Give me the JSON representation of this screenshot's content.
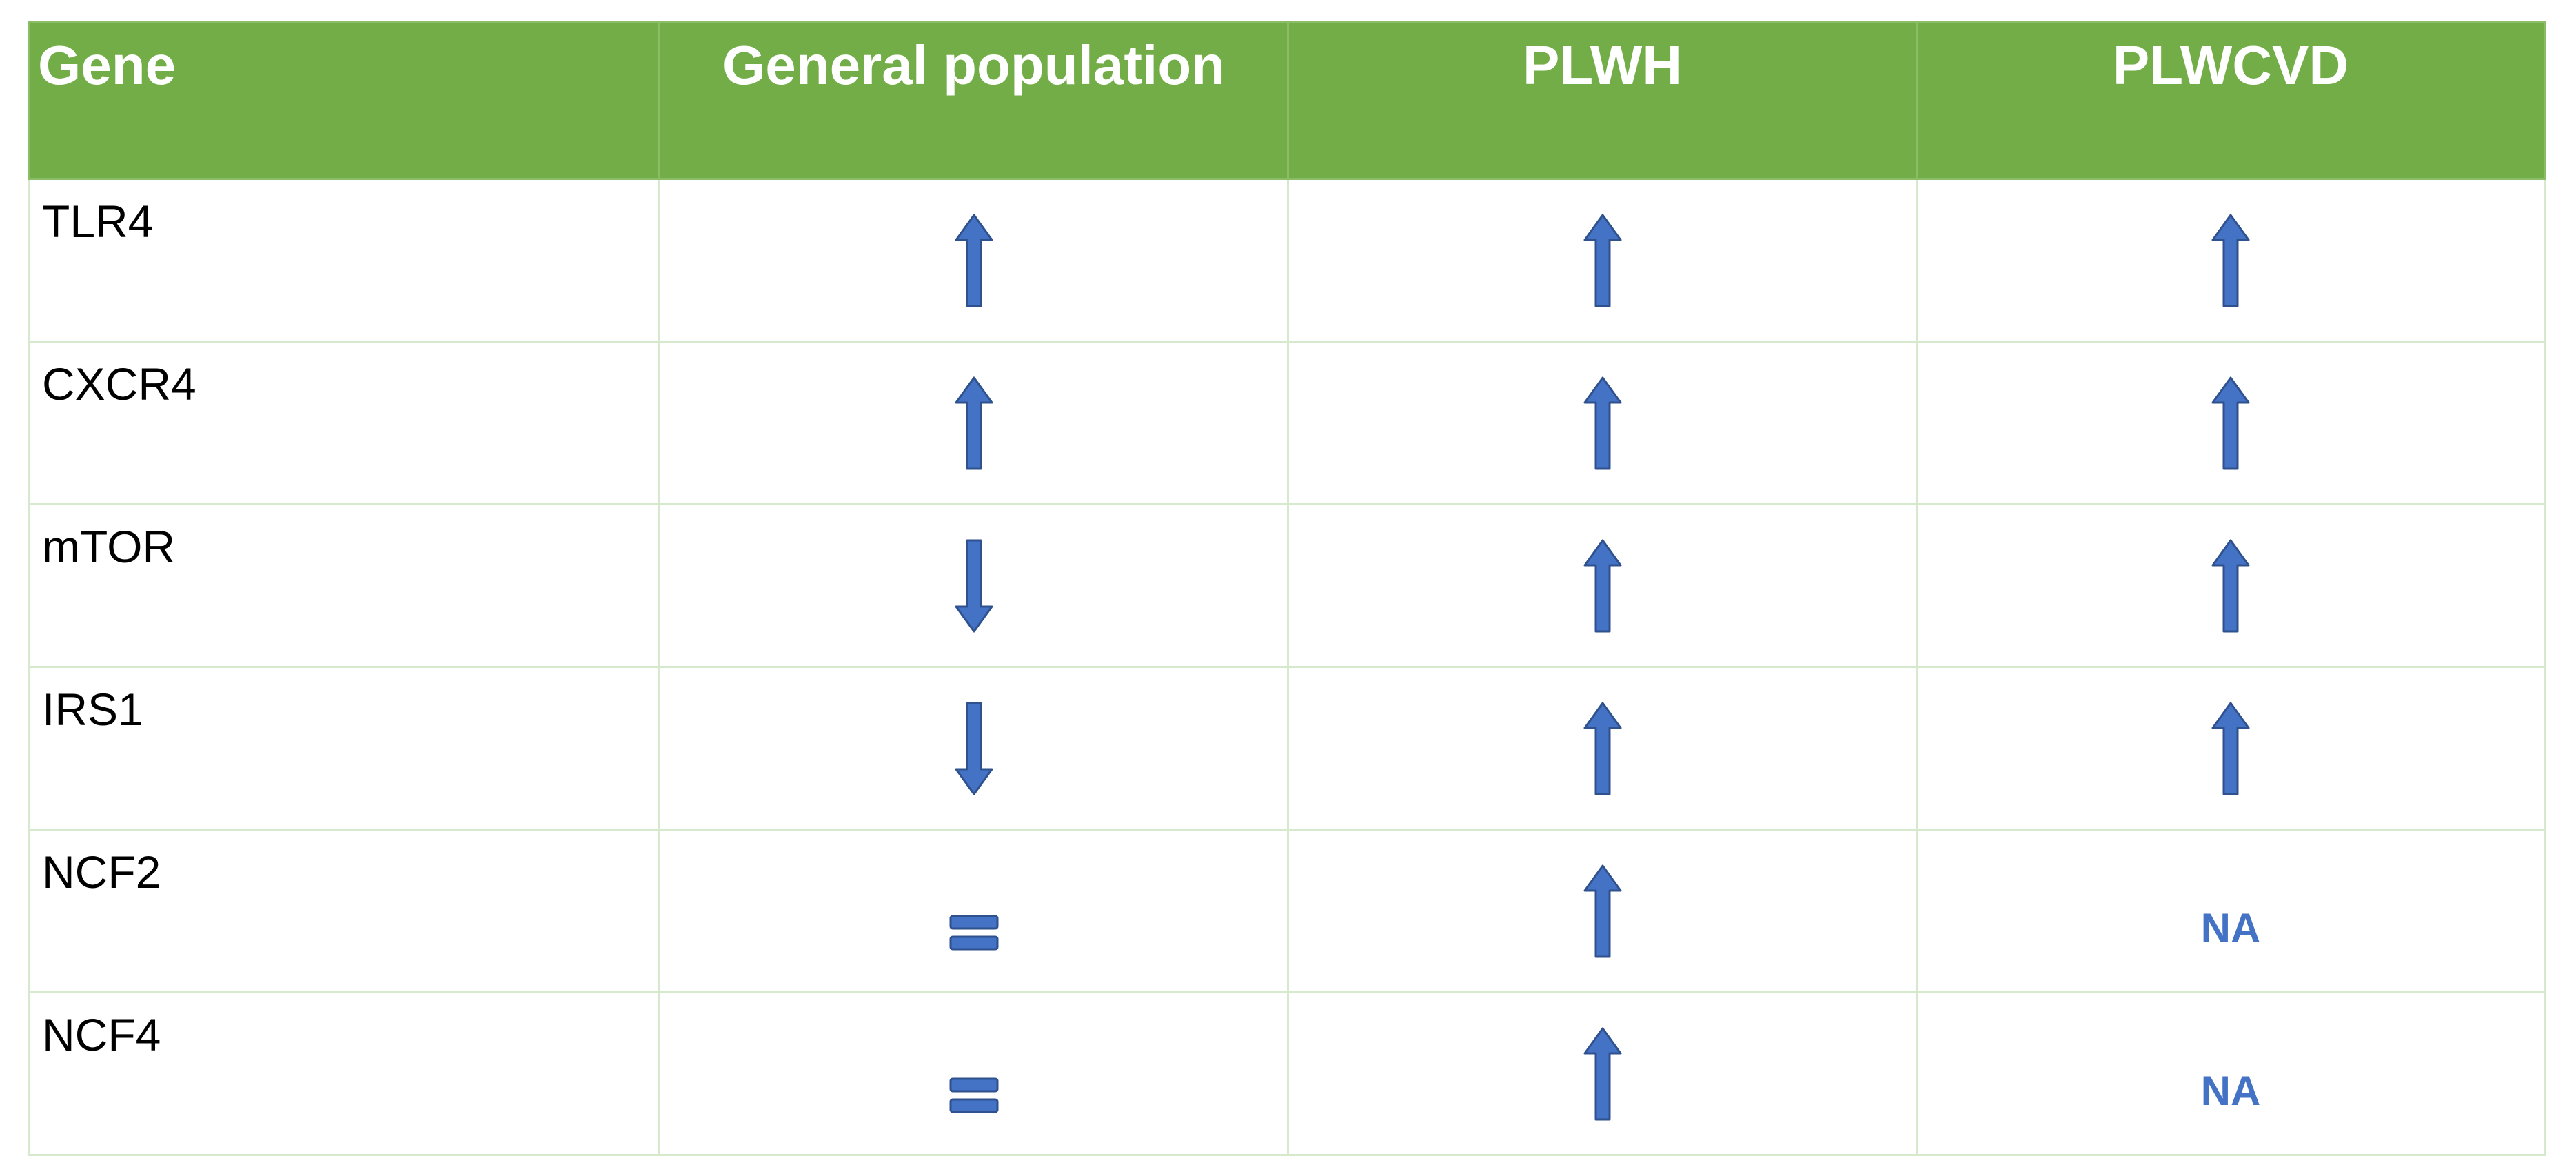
{
  "table": {
    "headers": [
      "Gene",
      "General population",
      "PLWH",
      "PLWCVD"
    ],
    "rows": [
      {
        "gene": "TLR4",
        "cells": [
          {
            "icon": "up-arrow-icon"
          },
          {
            "icon": "up-arrow-icon"
          },
          {
            "icon": "up-arrow-icon"
          }
        ]
      },
      {
        "gene": "CXCR4",
        "cells": [
          {
            "icon": "up-arrow-icon"
          },
          {
            "icon": "up-arrow-icon"
          },
          {
            "icon": "up-arrow-icon"
          }
        ]
      },
      {
        "gene": "mTOR",
        "cells": [
          {
            "icon": "down-arrow-icon"
          },
          {
            "icon": "up-arrow-icon"
          },
          {
            "icon": "up-arrow-icon"
          }
        ]
      },
      {
        "gene": "IRS1",
        "cells": [
          {
            "icon": "down-arrow-icon"
          },
          {
            "icon": "up-arrow-icon"
          },
          {
            "icon": "up-arrow-icon"
          }
        ]
      },
      {
        "gene": "NCF2",
        "cells": [
          {
            "icon": "equal-sign-icon"
          },
          {
            "icon": "up-arrow-icon"
          },
          {
            "text": "NA"
          }
        ]
      },
      {
        "gene": "NCF4",
        "cells": [
          {
            "icon": "equal-sign-icon"
          },
          {
            "icon": "up-arrow-icon"
          },
          {
            "text": "NA"
          }
        ]
      }
    ]
  },
  "colors": {
    "header_bg": "#72ad47",
    "header_text": "#ffffff",
    "mark_fill": "#4472c4",
    "mark_stroke": "#2f528f",
    "grid": "#d7e9cc"
  }
}
